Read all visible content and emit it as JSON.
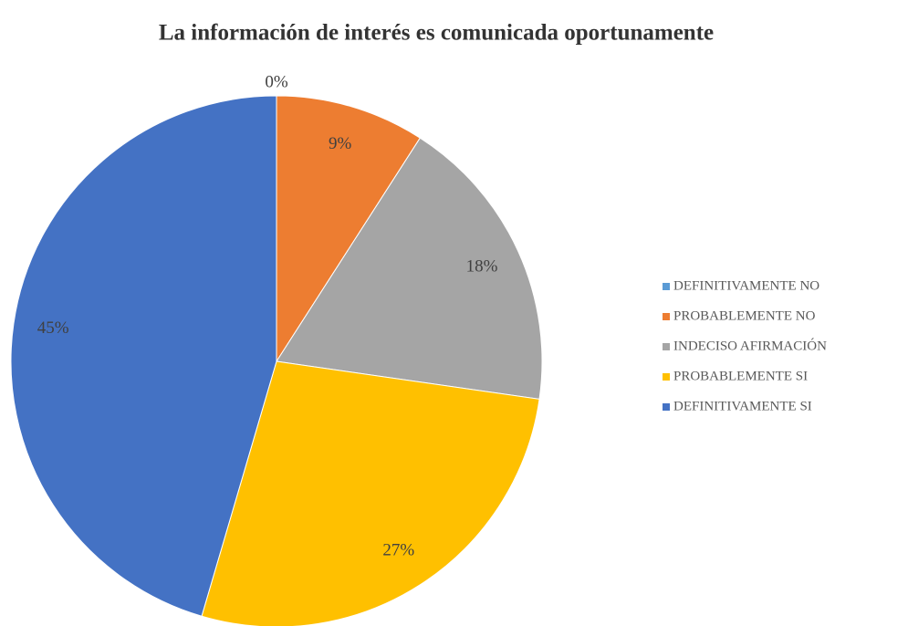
{
  "chart_data": {
    "type": "pie",
    "title": "La información  de interés es comunicada  oportunamente",
    "categories": [
      "DEFINITIVAMENTE NO",
      "PROBABLEMENTE NO",
      "INDECISO AFIRMACIÓN",
      "PROBABLEMENTE SI",
      "DEFINITIVAMENTE SI"
    ],
    "values": [
      0,
      9,
      18,
      27,
      45
    ],
    "value_labels": [
      "0%",
      "9%",
      "18%",
      "27%",
      "45%"
    ],
    "colors": [
      "#5b9bd5",
      "#ed7d31",
      "#a5a5a5",
      "#ffc000",
      "#4472c4"
    ],
    "legend": "right"
  }
}
